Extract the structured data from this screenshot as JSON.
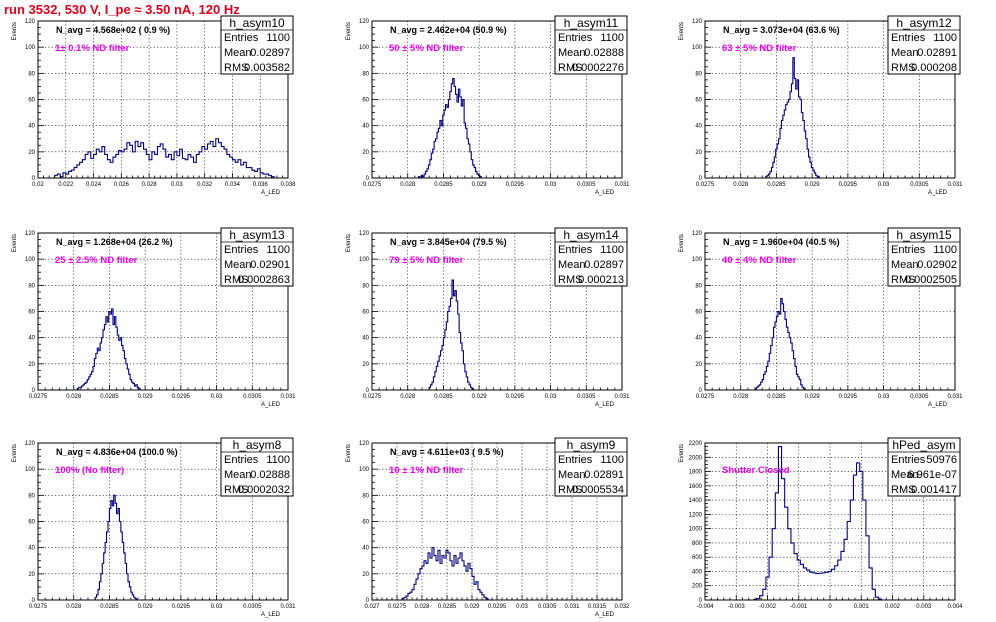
{
  "page": {
    "title": "run 3532,   530 V, I_pe ≈ 3.50 nA, 120 Hz"
  },
  "chart_data": [
    {
      "type": "histogram",
      "name": "h_asym10",
      "navg": "N_avg = 4.568e+02 ( 0.9 %)",
      "filter": "1± 0.1% ND filter",
      "stats": {
        "entries": "1100",
        "mean": "0.02897",
        "rms": "0.003582"
      },
      "xlim": [
        0.02,
        0.038
      ],
      "ylim": [
        0,
        120
      ],
      "xticks": [
        0.02,
        0.022,
        0.024,
        0.026,
        0.028,
        0.03,
        0.032,
        0.034,
        0.036,
        0.038
      ],
      "xtick_labels": [
        "0.02",
        "0.022",
        "0.024",
        "0.026",
        "0.028",
        "0.03",
        "0.032",
        "0.034",
        "0.036",
        "0.038"
      ],
      "yticks": [
        0,
        20,
        40,
        60,
        80,
        100,
        120
      ],
      "ytick_labels": [
        "0",
        "20",
        "40",
        "60",
        "80",
        "100",
        "120"
      ],
      "xlabel": "A_LED",
      "ylabel": "Events",
      "bins": {
        "start": 0.0212,
        "width": 0.0002,
        "counts": [
          2,
          3,
          1,
          4,
          3,
          5,
          6,
          8,
          10,
          12,
          14,
          18,
          20,
          15,
          18,
          22,
          20,
          24,
          18,
          14,
          12,
          16,
          18,
          21,
          20,
          22,
          27,
          25,
          20,
          28,
          24,
          27,
          22,
          18,
          14,
          20,
          18,
          24,
          26,
          22,
          16,
          18,
          14,
          20,
          17,
          22,
          15,
          14,
          18,
          16,
          12,
          18,
          20,
          24,
          22,
          26,
          28,
          24,
          30,
          27,
          24,
          22,
          18,
          16,
          14,
          12,
          14,
          10,
          12,
          8,
          8,
          6,
          5,
          7,
          4,
          3,
          3,
          2,
          1
        ]
      }
    },
    {
      "type": "histogram",
      "name": "h_asym11",
      "navg": "N_avg = 2.462e+04 (50.9 %)",
      "filter": "50 ± 5% ND filter",
      "stats": {
        "entries": "1100",
        "mean": "0.02888",
        "rms": "0.0002276"
      },
      "xlim": [
        0.0275,
        0.031
      ],
      "ylim": [
        0,
        120
      ],
      "xticks": [
        0.0275,
        0.028,
        0.0285,
        0.029,
        0.0295,
        0.03,
        0.0305,
        0.031
      ],
      "xtick_labels": [
        "0.0275",
        "0.028",
        "0.0285",
        "0.029",
        "0.0295",
        "0.03",
        "0.0305",
        "0.031"
      ],
      "yticks": [
        0,
        20,
        40,
        60,
        80,
        100,
        120
      ],
      "ytick_labels": [
        "0",
        "20",
        "40",
        "60",
        "80",
        "100",
        "120"
      ],
      "xlabel": "A_LED",
      "ylabel": "Events",
      "bins": {
        "start": 0.02815,
        "width": 2e-05,
        "counts": [
          1,
          0,
          2,
          1,
          3,
          5,
          7,
          10,
          14,
          19,
          22,
          28,
          30,
          35,
          38,
          44,
          40,
          48,
          52,
          56,
          54,
          60,
          66,
          72,
          76,
          70,
          64,
          58,
          68,
          62,
          55,
          60,
          42,
          38,
          30,
          26,
          20,
          14,
          10,
          8,
          5,
          3,
          2,
          1
        ]
      }
    },
    {
      "type": "histogram",
      "name": "h_asym12",
      "navg": "N_avg = 3.073e+04 (63.6 %)",
      "filter": "63 ± 5% ND filter",
      "stats": {
        "entries": "1100",
        "mean": "0.02891",
        "rms": "0.000208"
      },
      "xlim": [
        0.0275,
        0.031
      ],
      "ylim": [
        0,
        120
      ],
      "xticks": [
        0.0275,
        0.028,
        0.0285,
        0.029,
        0.0295,
        0.03,
        0.0305,
        0.031
      ],
      "xtick_labels": [
        "0.0275",
        "0.028",
        "0.0285",
        "0.029",
        "0.0295",
        "0.03",
        "0.0305",
        "0.031"
      ],
      "yticks": [
        0,
        20,
        40,
        60,
        80,
        100,
        120
      ],
      "ytick_labels": [
        "0",
        "20",
        "40",
        "60",
        "80",
        "100",
        "120"
      ],
      "xlabel": "A_LED",
      "ylabel": "Events",
      "bins": {
        "start": 0.02835,
        "width": 2e-05,
        "counts": [
          1,
          2,
          3,
          5,
          8,
          12,
          16,
          22,
          26,
          30,
          38,
          44,
          48,
          52,
          56,
          58,
          60,
          66,
          72,
          92,
          76,
          68,
          75,
          62,
          60,
          50,
          44,
          36,
          30,
          22,
          16,
          12,
          8,
          6,
          4,
          2,
          1
        ]
      }
    },
    {
      "type": "histogram",
      "name": "h_asym13",
      "navg": "N_avg = 1.268e+04 (26.2 %)",
      "filter": "25 ± 2.5% ND filter",
      "stats": {
        "entries": "1100",
        "mean": "0.02901",
        "rms": "0.0002863"
      },
      "xlim": [
        0.0275,
        0.031
      ],
      "ylim": [
        0,
        120
      ],
      "xticks": [
        0.0275,
        0.028,
        0.0285,
        0.029,
        0.0295,
        0.03,
        0.0305,
        0.031
      ],
      "xtick_labels": [
        "0.0275",
        "0.028",
        "0.0285",
        "0.029",
        "0.0295",
        "0.03",
        "0.0305",
        "0.031"
      ],
      "yticks": [
        0,
        20,
        40,
        60,
        80,
        100,
        120
      ],
      "ytick_labels": [
        "0",
        "20",
        "40",
        "60",
        "80",
        "100",
        "120"
      ],
      "xlabel": "A_LED",
      "ylabel": "Events",
      "bins": {
        "start": 0.02805,
        "width": 2e-05,
        "counts": [
          1,
          2,
          2,
          3,
          4,
          5,
          6,
          8,
          10,
          12,
          14,
          18,
          24,
          28,
          32,
          30,
          36,
          40,
          46,
          50,
          56,
          52,
          60,
          58,
          62,
          50,
          56,
          48,
          42,
          38,
          40,
          34,
          30,
          24,
          20,
          16,
          12,
          8,
          6,
          5,
          3,
          4,
          2,
          1
        ]
      }
    },
    {
      "type": "histogram",
      "name": "h_asym14",
      "navg": "N_avg = 3.845e+04 (79.5 %)",
      "filter": "79 ± 5% ND filter",
      "stats": {
        "entries": "1100",
        "mean": "0.02897",
        "rms": "0.000213"
      },
      "xlim": [
        0.0275,
        0.031
      ],
      "ylim": [
        0,
        120
      ],
      "xticks": [
        0.0275,
        0.028,
        0.0285,
        0.029,
        0.0295,
        0.03,
        0.0305,
        0.031
      ],
      "xtick_labels": [
        "0.0275",
        "0.028",
        "0.0285",
        "0.029",
        "0.0295",
        "0.03",
        "0.0305",
        "0.031"
      ],
      "yticks": [
        0,
        20,
        40,
        60,
        80,
        100,
        120
      ],
      "ytick_labels": [
        "0",
        "20",
        "40",
        "60",
        "80",
        "100",
        "120"
      ],
      "xlabel": "A_LED",
      "ylabel": "Events",
      "bins": {
        "start": 0.0283,
        "width": 2e-05,
        "counts": [
          2,
          4,
          6,
          10,
          14,
          18,
          22,
          26,
          30,
          34,
          40,
          46,
          52,
          60,
          64,
          70,
          84,
          72,
          76,
          68,
          58,
          44,
          36,
          30,
          20,
          14,
          10,
          6,
          4,
          2,
          1
        ]
      }
    },
    {
      "type": "histogram",
      "name": "h_asym15",
      "navg": "N_avg = 1.960e+04 (40.5 %)",
      "filter": "40 ± 4% ND filter",
      "stats": {
        "entries": "1100",
        "mean": "0.02902",
        "rms": "0.0002505"
      },
      "xlim": [
        0.0275,
        0.031
      ],
      "ylim": [
        0,
        120
      ],
      "xticks": [
        0.0275,
        0.028,
        0.0285,
        0.029,
        0.0295,
        0.03,
        0.0305,
        0.031
      ],
      "xtick_labels": [
        "0.0275",
        "0.028",
        "0.0285",
        "0.029",
        "0.0295",
        "0.03",
        "0.0305",
        "0.031"
      ],
      "yticks": [
        0,
        20,
        40,
        60,
        80,
        100,
        120
      ],
      "ytick_labels": [
        "0",
        "20",
        "40",
        "60",
        "80",
        "100",
        "120"
      ],
      "xlabel": "A_LED",
      "ylabel": "Events",
      "bins": {
        "start": 0.0282,
        "width": 2e-05,
        "counts": [
          1,
          2,
          3,
          4,
          6,
          8,
          12,
          14,
          18,
          22,
          28,
          34,
          40,
          48,
          52,
          56,
          60,
          58,
          70,
          66,
          60,
          54,
          48,
          44,
          40,
          36,
          30,
          24,
          18,
          12,
          10,
          8,
          4,
          2,
          1
        ]
      }
    },
    {
      "type": "histogram",
      "name": "h_asym8",
      "navg": "N_avg = 4.836e+04 (100.0 %)",
      "filter": "100% (No filter)",
      "stats": {
        "entries": "1100",
        "mean": "0.02888",
        "rms": "0.0002032"
      },
      "xlim": [
        0.0275,
        0.031
      ],
      "ylim": [
        0,
        120
      ],
      "xticks": [
        0.0275,
        0.028,
        0.0285,
        0.029,
        0.0295,
        0.03,
        0.0305,
        0.031
      ],
      "xtick_labels": [
        "0.0275",
        "0.028",
        "0.0285",
        "0.029",
        "0.0295",
        "0.03",
        "0.0305",
        "0.031"
      ],
      "yticks": [
        0,
        20,
        40,
        60,
        80,
        100,
        120
      ],
      "ytick_labels": [
        "0",
        "20",
        "40",
        "60",
        "80",
        "100",
        "120"
      ],
      "xlabel": "A_LED",
      "ylabel": "Events",
      "bins": {
        "start": 0.0283,
        "width": 2e-05,
        "counts": [
          2,
          4,
          8,
          14,
          20,
          28,
          36,
          44,
          52,
          60,
          70,
          76,
          72,
          80,
          74,
          66,
          70,
          60,
          52,
          44,
          36,
          28,
          20,
          14,
          10,
          6,
          4,
          2,
          1
        ]
      }
    },
    {
      "type": "histogram",
      "name": "h_asym9",
      "navg": "N_avg = 4.611e+03 ( 9.5 %)",
      "filter": "10 ± 1% ND filter",
      "stats": {
        "entries": "1100",
        "mean": "0.02891",
        "rms": "0.0005534"
      },
      "xlim": [
        0.027,
        0.032
      ],
      "ylim": [
        0,
        120
      ],
      "xticks": [
        0.027,
        0.0275,
        0.028,
        0.0285,
        0.029,
        0.0295,
        0.03,
        0.0305,
        0.031,
        0.0315,
        0.032
      ],
      "xtick_labels": [
        "0.027",
        "0.0275",
        "0.028",
        "0.0285",
        "0.029",
        "0.0295",
        "0.03",
        "0.0305",
        "0.031",
        "0.0315",
        "0.032"
      ],
      "yticks": [
        0,
        20,
        40,
        60,
        80,
        100,
        120
      ],
      "ytick_labels": [
        "0",
        "20",
        "40",
        "60",
        "80",
        "100",
        "120"
      ],
      "xlabel": "A_LED",
      "ylabel": "Events",
      "bins": {
        "start": 0.0276,
        "width": 4e-05,
        "counts": [
          1,
          2,
          3,
          5,
          6,
          8,
          12,
          16,
          20,
          24,
          26,
          30,
          28,
          36,
          32,
          40,
          34,
          30,
          38,
          28,
          34,
          32,
          38,
          36,
          30,
          26,
          34,
          28,
          32,
          36,
          30,
          26,
          22,
          28,
          24,
          18,
          12,
          14,
          8,
          6,
          4,
          2,
          1
        ]
      }
    },
    {
      "type": "histogram",
      "name": "hPed_asym",
      "navg": "",
      "filter": "Shutter Closed",
      "stats": {
        "entries": "50976",
        "mean": "6.961e-07",
        "rms": "0.001417"
      },
      "xlim": [
        -0.004,
        0.004
      ],
      "ylim": [
        0,
        2200
      ],
      "xticks": [
        -0.004,
        -0.003,
        -0.002,
        -0.001,
        0,
        0.001,
        0.002,
        0.003,
        0.004
      ],
      "xtick_labels": [
        "-0.004",
        "-0.003",
        "-0.002",
        "-0.001",
        "0",
        "0.001",
        "0.002",
        "0.003",
        "0.004"
      ],
      "yticks": [
        0,
        200,
        400,
        600,
        800,
        1000,
        1200,
        1400,
        1600,
        1800,
        2000,
        2200
      ],
      "ytick_labels": [
        "0",
        "200",
        "400",
        "600",
        "800",
        "1000",
        "1200",
        "1400",
        "1600",
        "1800",
        "2000",
        "2200"
      ],
      "xlabel": "",
      "ylabel": "Events",
      "bins": {
        "start": -0.00245,
        "width": 0.0001,
        "counts": [
          5,
          20,
          60,
          150,
          320,
          600,
          1000,
          1500,
          2150,
          1700,
          1300,
          1000,
          800,
          650,
          560,
          500,
          450,
          420,
          390,
          380,
          370,
          375,
          380,
          390,
          400,
          430,
          480,
          560,
          680,
          850,
          1100,
          1400,
          1750,
          1920,
          1800,
          1400,
          900,
          450,
          150,
          40,
          10
        ]
      }
    }
  ]
}
